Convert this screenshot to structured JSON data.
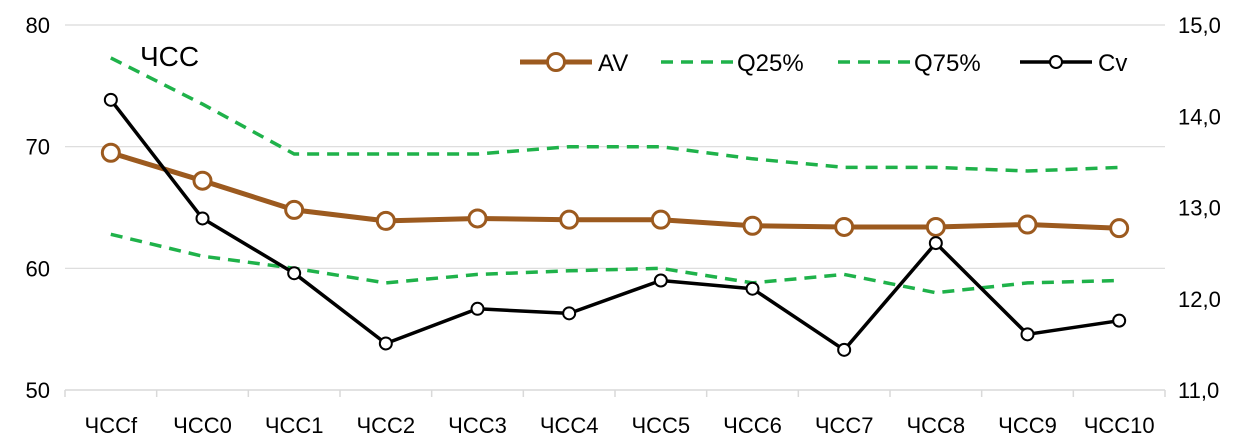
{
  "chart_data": {
    "type": "line",
    "annotation": "ЧСС",
    "categories": [
      "ЧССf",
      "ЧСС0",
      "ЧСС1",
      "ЧСС2",
      "ЧСС3",
      "ЧСС4",
      "ЧСС5",
      "ЧСС6",
      "ЧСС7",
      "ЧСС8",
      "ЧСС9",
      "ЧСС10"
    ],
    "y_left": {
      "min": 50,
      "max": 80,
      "ticks": [
        "50",
        "60",
        "70",
        "80"
      ]
    },
    "y_right": {
      "min": 11.0,
      "max": 15.0,
      "ticks": [
        "11,0",
        "12,0",
        "13,0",
        "14,0",
        "15,0"
      ]
    },
    "grid": true,
    "legend_position": "top-right",
    "series": [
      {
        "name": "AV",
        "axis": "left",
        "style": "solid-marker",
        "color": "#9c5a1f",
        "values": [
          69.5,
          67.2,
          64.8,
          63.9,
          64.1,
          64.0,
          64.0,
          63.5,
          63.4,
          63.4,
          63.6,
          63.3
        ]
      },
      {
        "name": "Q25%",
        "axis": "left",
        "style": "dashed",
        "color": "#1fb24a",
        "values": [
          62.8,
          61.0,
          60.0,
          58.8,
          59.5,
          59.8,
          60.0,
          58.8,
          59.5,
          58.0,
          58.8,
          59.0
        ]
      },
      {
        "name": "Q75%",
        "axis": "left",
        "style": "dashed",
        "color": "#1fb24a",
        "values": [
          77.3,
          73.5,
          69.4,
          69.4,
          69.4,
          70.0,
          70.0,
          69.0,
          68.3,
          68.3,
          68.0,
          68.3
        ]
      },
      {
        "name": "Cv",
        "axis": "right",
        "style": "solid-marker",
        "color": "#000000",
        "values": [
          14.18,
          12.88,
          12.28,
          11.51,
          11.89,
          11.84,
          12.2,
          12.11,
          11.44,
          12.61,
          11.61,
          11.76
        ]
      }
    ]
  }
}
